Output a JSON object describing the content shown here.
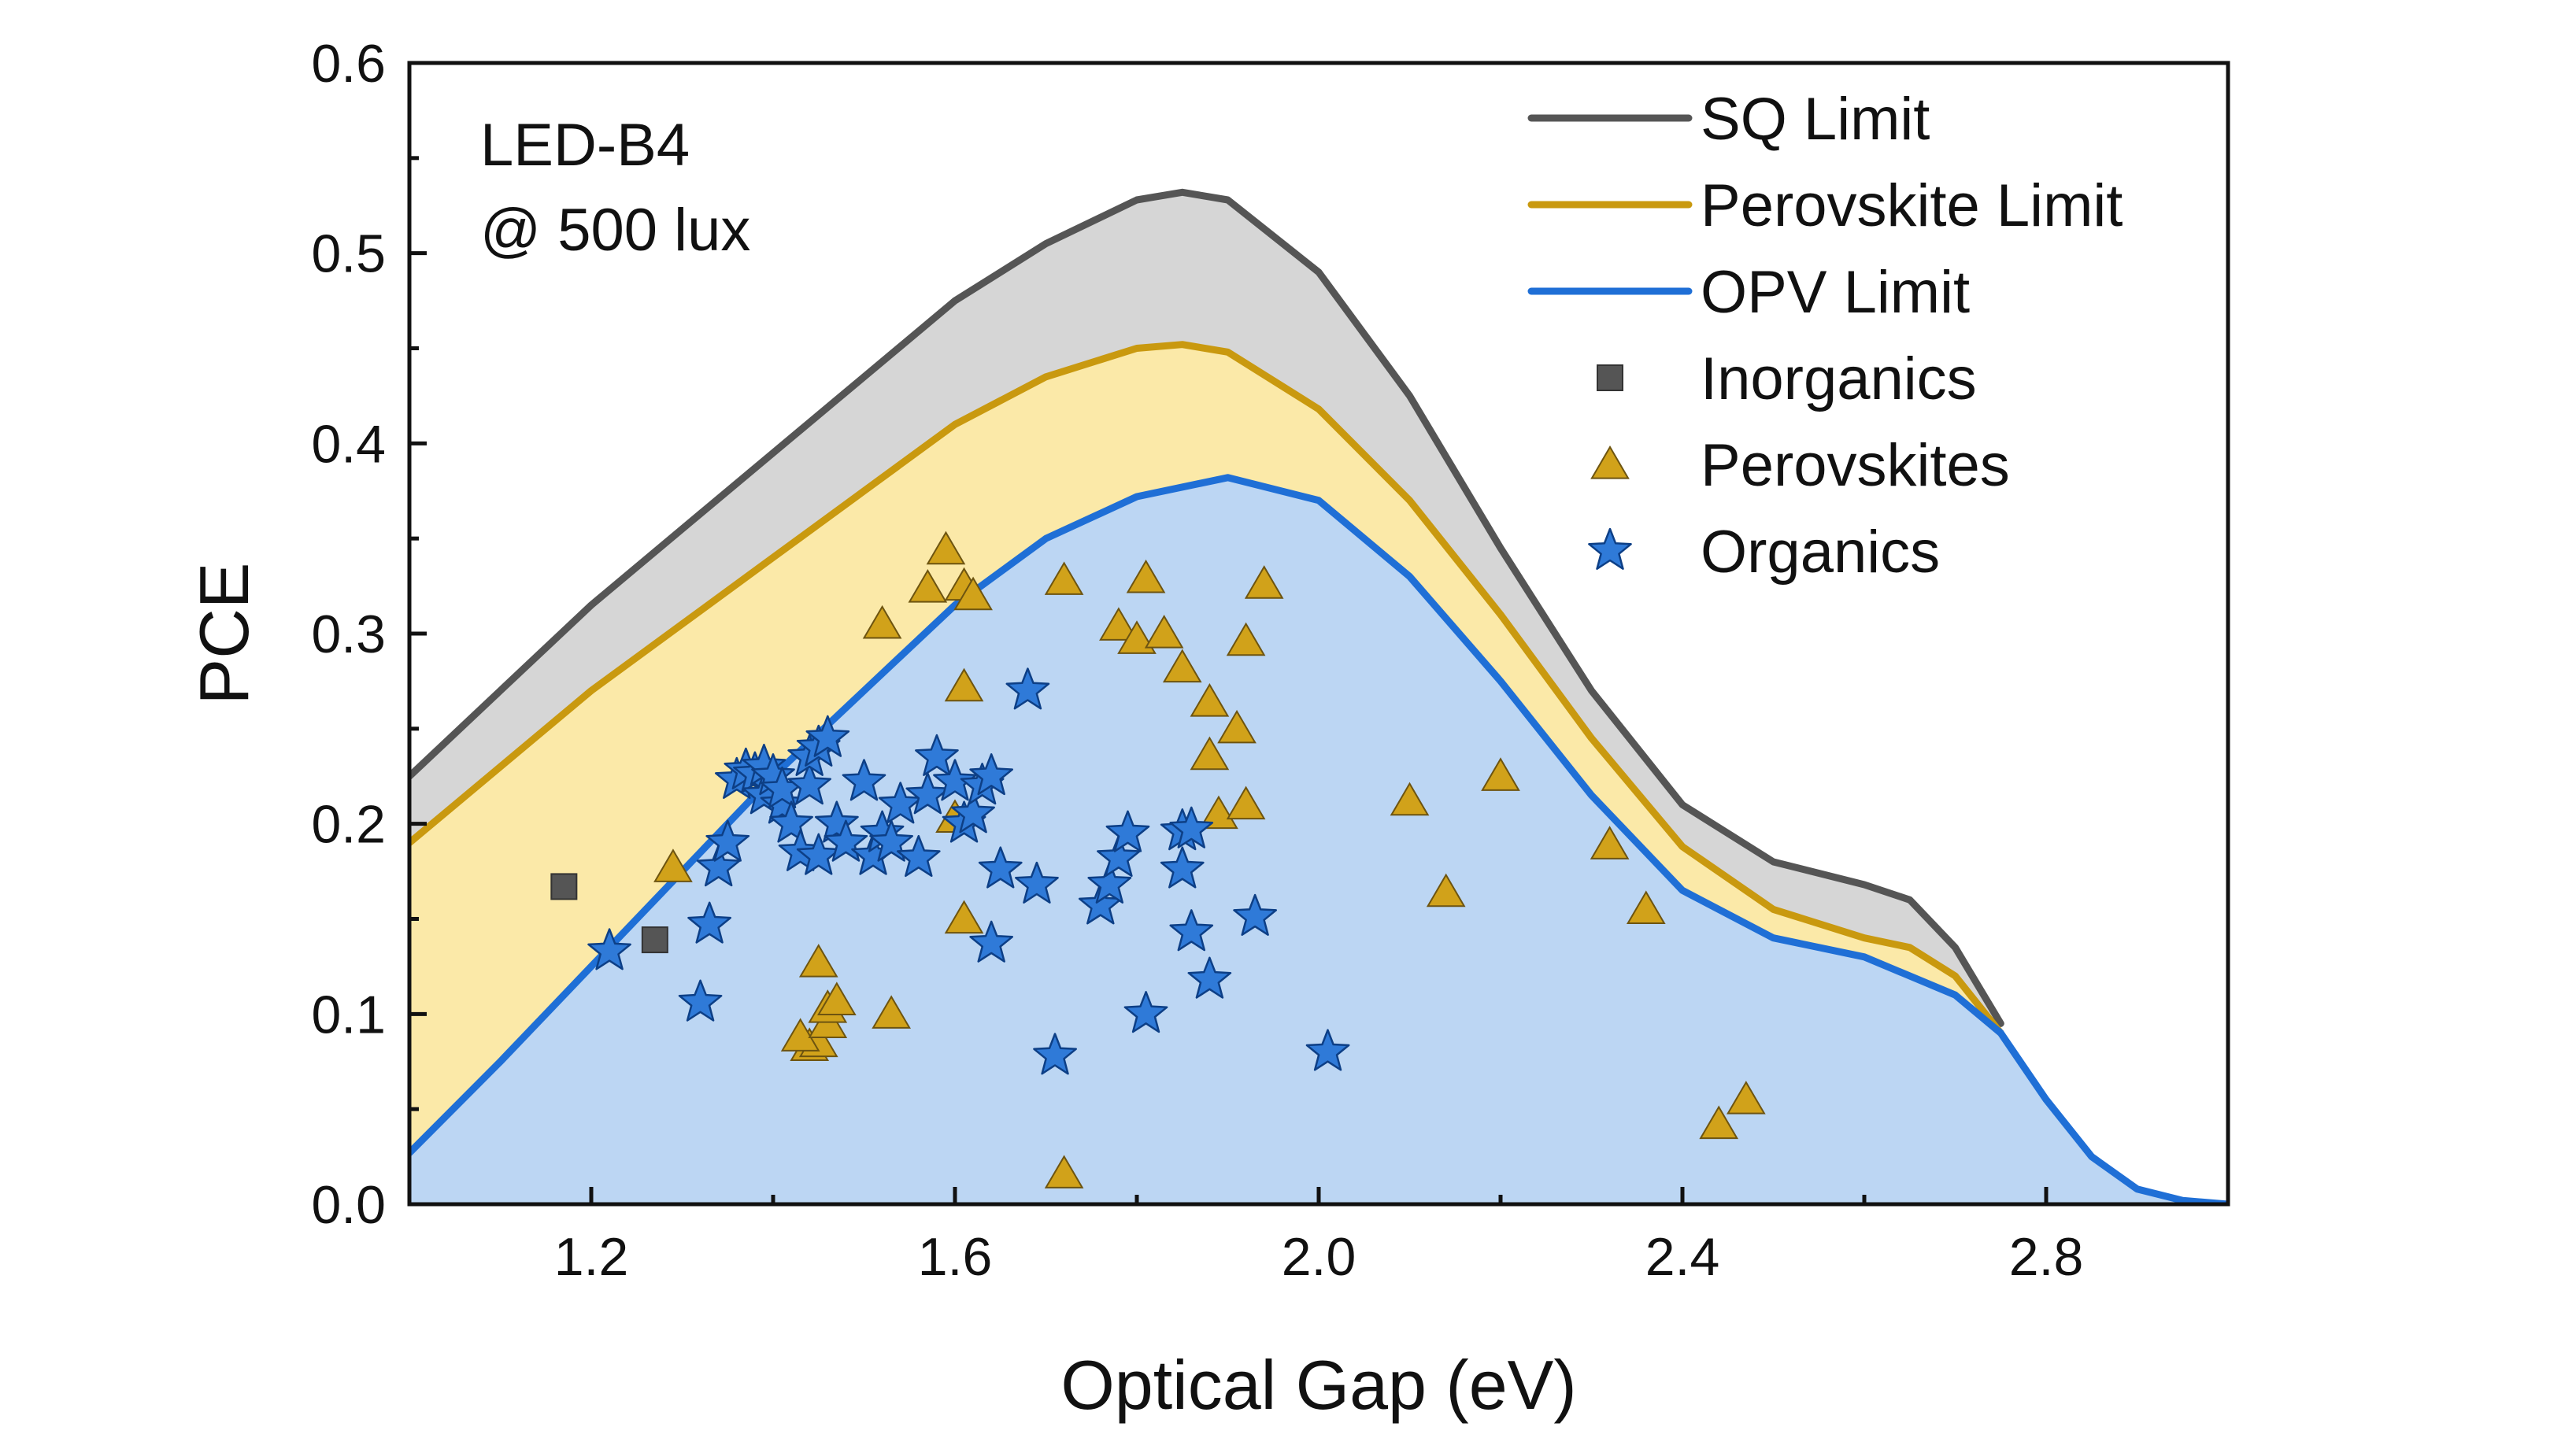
{
  "chart_data": {
    "type": "scatter",
    "xlabel": "Optical Gap (eV)",
    "ylabel": "PCE",
    "xlim": [
      1.0,
      3.0
    ],
    "ylim": [
      0.0,
      0.6
    ],
    "x_ticks": [
      1.2,
      1.6,
      2.0,
      2.4,
      2.8
    ],
    "x_tick_labels": [
      "1.2",
      "1.6",
      "2.0",
      "2.4",
      "2.8"
    ],
    "y_ticks": [
      0.0,
      0.1,
      0.2,
      0.3,
      0.4,
      0.5,
      0.6
    ],
    "y_tick_labels": [
      "0.0",
      "0.1",
      "0.2",
      "0.3",
      "0.4",
      "0.5",
      "0.6"
    ],
    "annotation": [
      "LED-B4",
      "@ 500 lux"
    ],
    "legend_position": "top-right",
    "grid": false,
    "colors": {
      "sq_line": "#555555",
      "sq_fill": "#d6d6d6",
      "perovskite_line": "#c9990f",
      "perovskite_fill": "#fbe9a8",
      "opv_line": "#1f6fd6",
      "opv_fill": "#bcd6f3",
      "inorganic_marker": "#555555",
      "perovskite_marker": "#d1a21a",
      "organic_marker": "#2f7ad8"
    },
    "curves": [
      {
        "name": "SQ Limit",
        "x": [
          1.0,
          1.1,
          1.2,
          1.3,
          1.4,
          1.5,
          1.6,
          1.7,
          1.8,
          1.85,
          1.9,
          2.0,
          2.1,
          2.2,
          2.3,
          2.4,
          2.5,
          2.6,
          2.65,
          2.7,
          2.75
        ],
        "y": [
          0.225,
          0.27,
          0.315,
          0.355,
          0.395,
          0.435,
          0.475,
          0.505,
          0.528,
          0.532,
          0.528,
          0.49,
          0.425,
          0.345,
          0.27,
          0.21,
          0.18,
          0.168,
          0.16,
          0.135,
          0.095
        ]
      },
      {
        "name": "Perovskite Limit",
        "x": [
          1.0,
          1.1,
          1.2,
          1.3,
          1.4,
          1.5,
          1.6,
          1.7,
          1.8,
          1.85,
          1.9,
          2.0,
          2.1,
          2.2,
          2.3,
          2.4,
          2.5,
          2.6,
          2.65,
          2.7,
          2.75
        ],
        "y": [
          0.19,
          0.23,
          0.27,
          0.305,
          0.34,
          0.375,
          0.41,
          0.435,
          0.45,
          0.452,
          0.448,
          0.418,
          0.37,
          0.31,
          0.245,
          0.188,
          0.155,
          0.14,
          0.135,
          0.12,
          0.09
        ]
      },
      {
        "name": "OPV Limit",
        "x": [
          1.0,
          1.1,
          1.2,
          1.3,
          1.4,
          1.5,
          1.6,
          1.7,
          1.8,
          1.9,
          2.0,
          2.1,
          2.2,
          2.3,
          2.4,
          2.5,
          2.6,
          2.7,
          2.75,
          2.8,
          2.85,
          2.9,
          2.95,
          3.0
        ],
        "y": [
          0.027,
          0.075,
          0.125,
          0.175,
          0.225,
          0.27,
          0.315,
          0.35,
          0.372,
          0.382,
          0.37,
          0.33,
          0.275,
          0.215,
          0.165,
          0.14,
          0.13,
          0.11,
          0.09,
          0.055,
          0.025,
          0.008,
          0.002,
          0.0
        ]
      }
    ],
    "series": [
      {
        "name": "Inorganics",
        "marker": "square",
        "points": [
          [
            1.17,
            0.167
          ],
          [
            1.27,
            0.139
          ]
        ]
      },
      {
        "name": "Perovskites",
        "marker": "triangle",
        "points": [
          [
            1.29,
            0.177
          ],
          [
            1.44,
            0.083
          ],
          [
            1.45,
            0.085
          ],
          [
            1.43,
            0.088
          ],
          [
            1.45,
            0.127
          ],
          [
            1.46,
            0.095
          ],
          [
            1.46,
            0.103
          ],
          [
            1.47,
            0.107
          ],
          [
            1.52,
            0.305
          ],
          [
            1.53,
            0.1
          ],
          [
            1.57,
            0.324
          ],
          [
            1.59,
            0.344
          ],
          [
            1.6,
            0.203
          ],
          [
            1.61,
            0.15
          ],
          [
            1.61,
            0.272
          ],
          [
            1.61,
            0.325
          ],
          [
            1.62,
            0.32
          ],
          [
            1.72,
            0.016
          ],
          [
            1.72,
            0.328
          ],
          [
            1.78,
            0.304
          ],
          [
            1.8,
            0.297
          ],
          [
            1.81,
            0.329
          ],
          [
            1.83,
            0.3
          ],
          [
            1.85,
            0.282
          ],
          [
            1.88,
            0.264
          ],
          [
            1.88,
            0.236
          ],
          [
            1.89,
            0.205
          ],
          [
            1.91,
            0.25
          ],
          [
            1.92,
            0.296
          ],
          [
            1.92,
            0.21
          ],
          [
            1.94,
            0.326
          ],
          [
            2.1,
            0.212
          ],
          [
            2.14,
            0.164
          ],
          [
            2.2,
            0.225
          ],
          [
            2.32,
            0.189
          ],
          [
            2.36,
            0.155
          ],
          [
            2.44,
            0.042
          ],
          [
            2.47,
            0.055
          ]
        ]
      },
      {
        "name": "Organics",
        "marker": "star",
        "points": [
          [
            1.22,
            0.133
          ],
          [
            1.32,
            0.106
          ],
          [
            1.33,
            0.147
          ],
          [
            1.34,
            0.177
          ],
          [
            1.35,
            0.19
          ],
          [
            1.36,
            0.223
          ],
          [
            1.37,
            0.228
          ],
          [
            1.38,
            0.226
          ],
          [
            1.39,
            0.23
          ],
          [
            1.39,
            0.215
          ],
          [
            1.4,
            0.225
          ],
          [
            1.41,
            0.21
          ],
          [
            1.41,
            0.218
          ],
          [
            1.42,
            0.2
          ],
          [
            1.43,
            0.185
          ],
          [
            1.44,
            0.22
          ],
          [
            1.44,
            0.235
          ],
          [
            1.45,
            0.24
          ],
          [
            1.45,
            0.183
          ],
          [
            1.46,
            0.245
          ],
          [
            1.47,
            0.2
          ],
          [
            1.48,
            0.19
          ],
          [
            1.5,
            0.222
          ],
          [
            1.51,
            0.183
          ],
          [
            1.52,
            0.195
          ],
          [
            1.53,
            0.19
          ],
          [
            1.54,
            0.21
          ],
          [
            1.56,
            0.182
          ],
          [
            1.57,
            0.215
          ],
          [
            1.58,
            0.235
          ],
          [
            1.6,
            0.222
          ],
          [
            1.61,
            0.2
          ],
          [
            1.62,
            0.205
          ],
          [
            1.63,
            0.22
          ],
          [
            1.64,
            0.225
          ],
          [
            1.64,
            0.137
          ],
          [
            1.65,
            0.176
          ],
          [
            1.68,
            0.27
          ],
          [
            1.69,
            0.168
          ],
          [
            1.71,
            0.078
          ],
          [
            1.76,
            0.157
          ],
          [
            1.77,
            0.168
          ],
          [
            1.78,
            0.182
          ],
          [
            1.79,
            0.195
          ],
          [
            1.81,
            0.1
          ],
          [
            1.85,
            0.176
          ],
          [
            1.85,
            0.196
          ],
          [
            1.86,
            0.197
          ],
          [
            1.86,
            0.143
          ],
          [
            1.88,
            0.118
          ],
          [
            1.93,
            0.151
          ],
          [
            2.01,
            0.08
          ]
        ]
      }
    ]
  }
}
